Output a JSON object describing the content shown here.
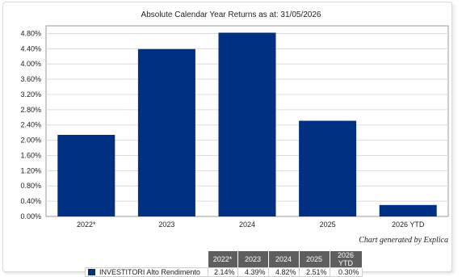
{
  "chart_data": {
    "type": "bar",
    "title": "Absolute Calendar Year Returns as at: 31/05/2026",
    "categories": [
      "2022*",
      "2023",
      "2024",
      "2025",
      "2026 YTD"
    ],
    "series": [
      {
        "name": "INVESTITORI Alto Rendimento",
        "values": [
          2.14,
          4.39,
          4.82,
          2.51,
          0.3
        ],
        "color": "#003082"
      }
    ],
    "y_ticks": [
      "0.00%",
      "0.40%",
      "0.80%",
      "1.20%",
      "1.60%",
      "2.00%",
      "2.40%",
      "2.80%",
      "3.20%",
      "3.60%",
      "4.00%",
      "4.40%",
      "4.80%"
    ],
    "ylim": [
      0,
      5.0
    ],
    "grid": true,
    "legend": "table-below"
  },
  "credit": "Chart generated by Explica",
  "table": {
    "headers": [
      "2022*",
      "2023",
      "2024",
      "2025",
      "2026 YTD"
    ],
    "row_label": "INVESTITORI Alto Rendimento",
    "row_values": [
      "2.14%",
      "4.39%",
      "4.82%",
      "2.51%",
      "0.30%"
    ]
  },
  "colors": {
    "bar": "#003082",
    "plot_bg": "#ffffff",
    "grid": "#dcdcdc"
  }
}
